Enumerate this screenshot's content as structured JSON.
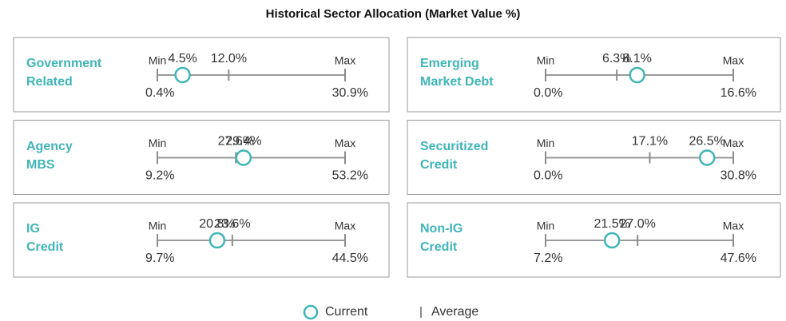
{
  "chart_data": {
    "type": "range",
    "title": "Historical Sector Allocation (Market Value %)",
    "categories": [
      "Government\nRelated",
      "Emerging\nMarket Debt",
      "Agency\nMBS",
      "Securitized\nCredit",
      "IG\nCredit",
      "Non-IG\nCredit"
    ],
    "min": {
      "label": "Min",
      "values": [
        0.4,
        0.0,
        9.2,
        0.0,
        9.7,
        7.2
      ],
      "value_labels": [
        "0.4%",
        "0.0%",
        "9.2%",
        "0.0%",
        "9.7%",
        "7.2%"
      ]
    },
    "max": {
      "label": "Max",
      "values": [
        30.9,
        16.6,
        53.2,
        30.8,
        44.5,
        47.6
      ],
      "value_labels": [
        "30.9%",
        "16.6%",
        "53.2%",
        "30.8%",
        "44.5%",
        "47.6%"
      ]
    },
    "series": [
      {
        "name": "Current",
        "color": "#3fb5b8",
        "values": [
          4.5,
          8.1,
          29.4,
          26.5,
          20.8,
          21.5
        ],
        "value_labels": [
          "4.5%",
          "8.1%",
          "29.4%",
          "26.5%",
          "20.8%",
          "21.5%"
        ]
      },
      {
        "name": "Average",
        "color": "#8c8c8c",
        "values": [
          12.0,
          6.3,
          27.6,
          17.1,
          23.6,
          27.0
        ],
        "value_labels": [
          "12.0%",
          "6.3%",
          "27.6%",
          "17.1%",
          "23.6%",
          "27.0%"
        ]
      }
    ]
  }
}
